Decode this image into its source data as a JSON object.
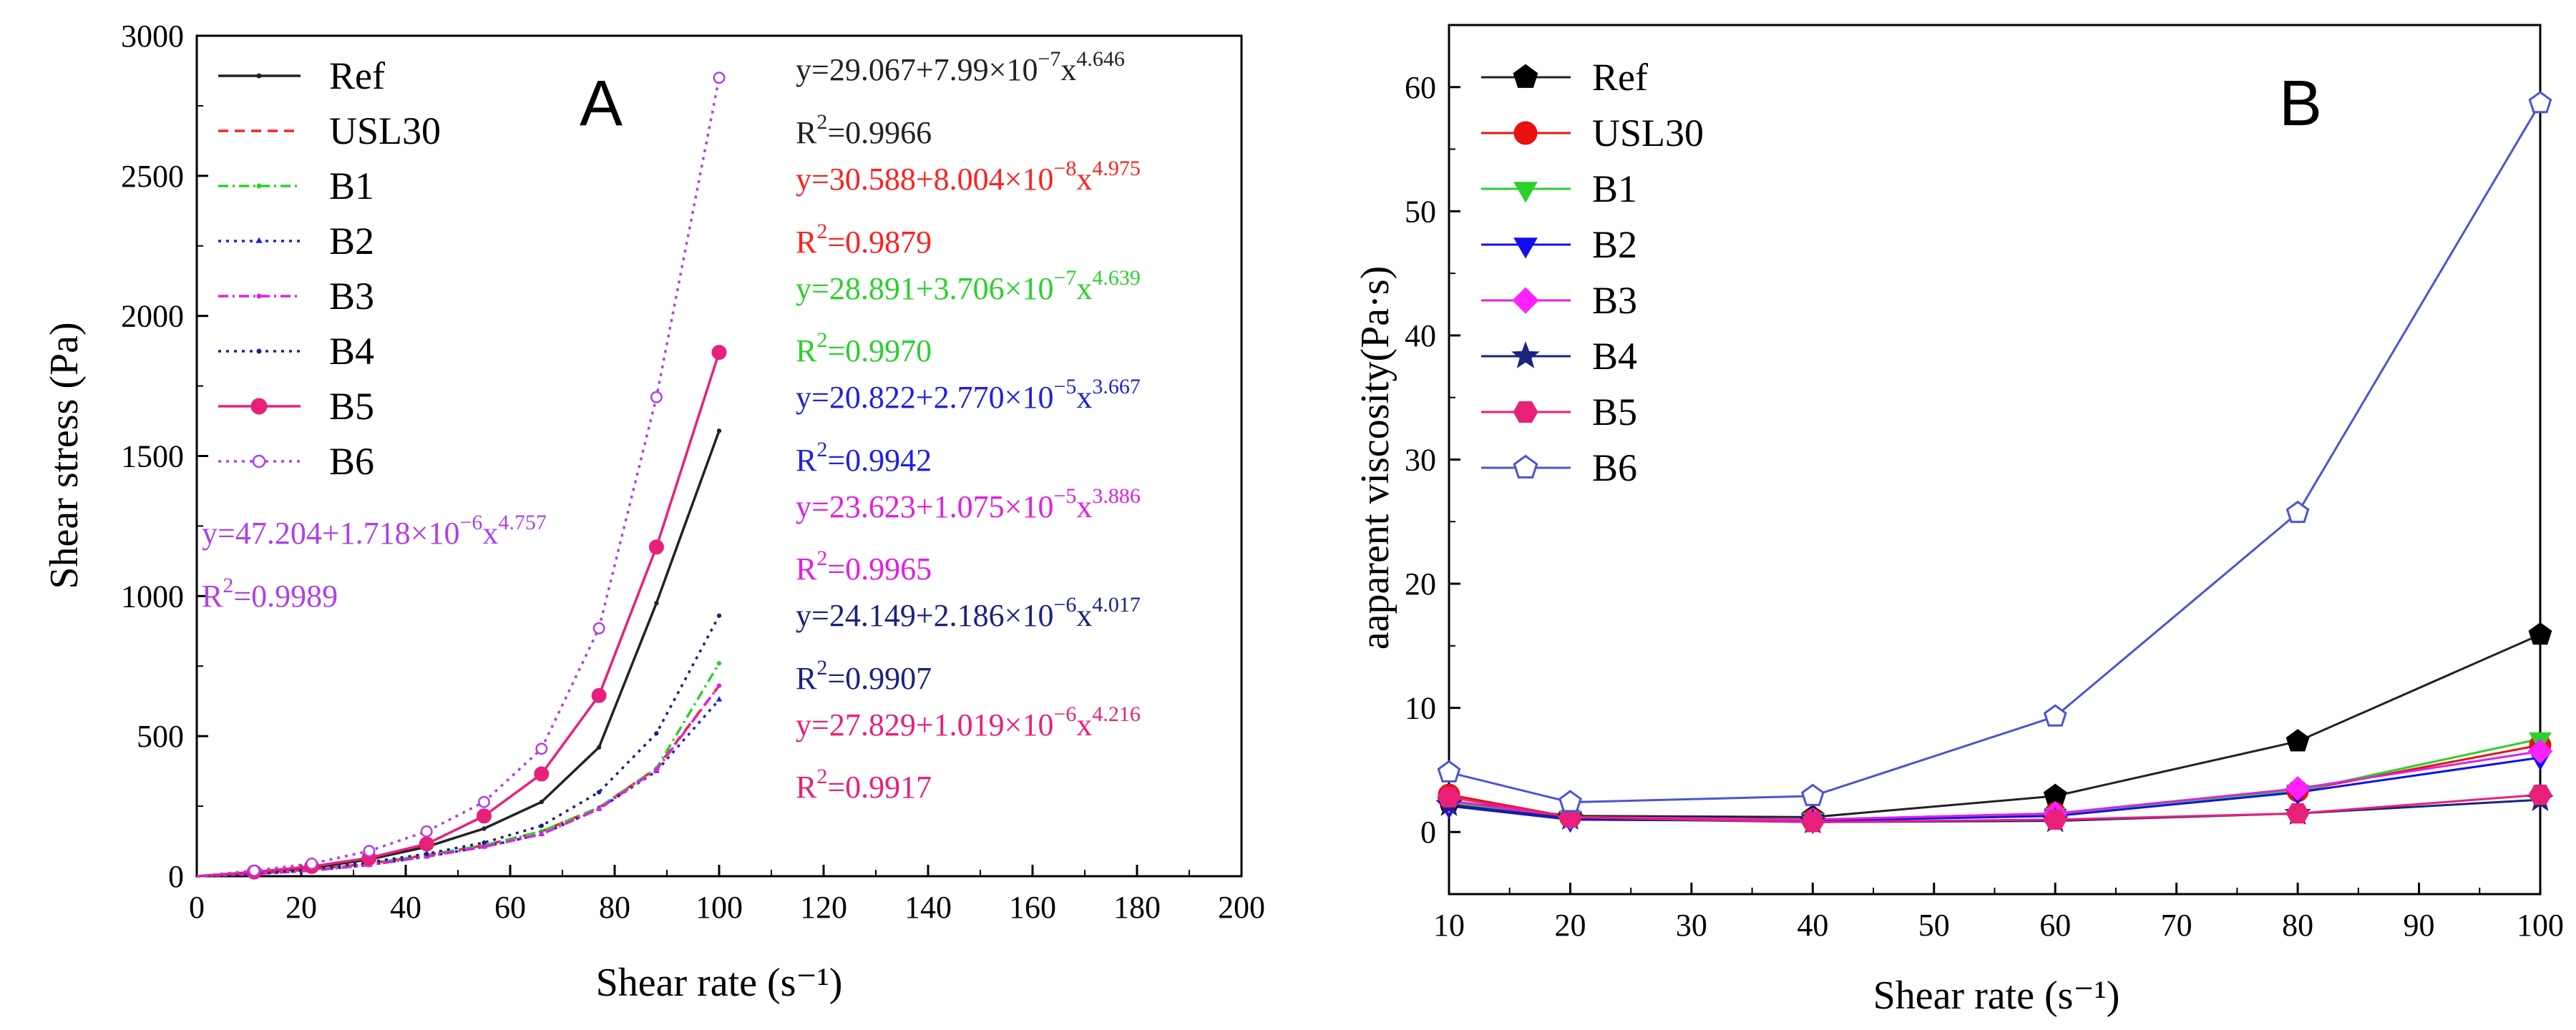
{
  "chart_data": [
    {
      "type": "line",
      "panel_label": "A",
      "xlabel": "Shear rate (s⁻¹)",
      "ylabel": "Shear stress (Pa)",
      "xlim": [
        0,
        200
      ],
      "ylim": [
        0,
        3000
      ],
      "xticks": [
        "0",
        "20",
        "40",
        "60",
        "80",
        "100",
        "120",
        "140",
        "160",
        "180",
        "200"
      ],
      "yticks": [
        "0",
        "500",
        "1000",
        "1500",
        "2000",
        "2500",
        "3000"
      ],
      "legend": "top-left",
      "x": [
        0,
        11,
        22,
        33,
        44,
        55,
        66,
        77,
        88,
        100
      ],
      "series": [
        {
          "name": "Ref",
          "color": "#222222",
          "dash": "solid",
          "marker": "dot",
          "values": [
            0,
            10,
            30,
            60,
            105,
            170,
            265,
            460,
            975,
            1590
          ]
        },
        {
          "name": "USL30",
          "color": "#ff2020",
          "dash": "dashed",
          "marker": "none",
          "values": [
            0,
            8,
            25,
            45,
            75,
            110,
            160,
            245,
            385,
            680
          ]
        },
        {
          "name": "B1",
          "color": "#2ad12a",
          "dash": "dashdot",
          "marker": "dot",
          "values": [
            0,
            8,
            22,
            45,
            75,
            110,
            160,
            245,
            385,
            760
          ]
        },
        {
          "name": "B2",
          "color": "#2020e0",
          "dash": "dotted",
          "marker": "triangle",
          "values": [
            0,
            8,
            20,
            40,
            70,
            105,
            150,
            240,
            375,
            630
          ]
        },
        {
          "name": "B3",
          "color": "#e020e0",
          "dash": "dashdot",
          "marker": "dot",
          "values": [
            0,
            8,
            20,
            40,
            70,
            105,
            150,
            240,
            380,
            680
          ]
        },
        {
          "name": "B4",
          "color": "#1a237e",
          "dash": "dotted",
          "marker": "dot",
          "values": [
            0,
            10,
            25,
            50,
            80,
            120,
            180,
            300,
            510,
            930
          ]
        },
        {
          "name": "B5",
          "color": "#e8207a",
          "dash": "solid",
          "marker": "filled-circle",
          "values": [
            0,
            15,
            35,
            65,
            115,
            215,
            365,
            645,
            1175,
            1870
          ]
        },
        {
          "name": "B6",
          "color": "#b040e8",
          "dash": "dotted",
          "marker": "open-circle",
          "values": [
            0,
            20,
            45,
            90,
            160,
            265,
            455,
            885,
            1710,
            2850
          ]
        }
      ],
      "annotations": [
        {
          "id": "ref_eq",
          "color": "#222222",
          "base": "y=29.067+7.99×10",
          "exp1": "−7",
          "mid": "x",
          "exp2": "4.646"
        },
        {
          "id": "ref_r2",
          "color": "#222222",
          "r2": "=0.9966"
        },
        {
          "id": "usl_eq",
          "color": "#ff2020",
          "base": "y=30.588+8.004×10",
          "exp1": "−8",
          "mid": "x",
          "exp2": "4.975"
        },
        {
          "id": "usl_r2",
          "color": "#ff2020",
          "r2": "=0.9879"
        },
        {
          "id": "b1_eq",
          "color": "#2ad12a",
          "base": "y=28.891+3.706×10",
          "exp1": "−7",
          "mid": "x",
          "exp2": "4.639"
        },
        {
          "id": "b1_r2",
          "color": "#2ad12a",
          "r2": "=0.9970"
        },
        {
          "id": "b2_eq",
          "color": "#2020e0",
          "base": "y=20.822+2.770×10",
          "exp1": "−5",
          "mid": "x",
          "exp2": "3.667"
        },
        {
          "id": "b2_r2",
          "color": "#2020e0",
          "r2": "=0.9942"
        },
        {
          "id": "b3_eq",
          "color": "#e020e0",
          "base": "y=23.623+1.075×10",
          "exp1": "−5",
          "mid": "x",
          "exp2": "3.886"
        },
        {
          "id": "b3_r2",
          "color": "#e020e0",
          "r2": "=0.9965"
        },
        {
          "id": "b4_eq",
          "color": "#1a237e",
          "base": "y=24.149+2.186×10",
          "exp1": "−6",
          "mid": "x",
          "exp2": "4.017"
        },
        {
          "id": "b4_r2",
          "color": "#1a237e",
          "r2": "=0.9907"
        },
        {
          "id": "b5_eq",
          "color": "#e8207a",
          "base": "y=27.829+1.019×10",
          "exp1": "−6",
          "mid": "x",
          "exp2": "4.216"
        },
        {
          "id": "b5_r2",
          "color": "#e8207a",
          "r2": "=0.9917"
        },
        {
          "id": "b6_eq",
          "color": "#b040e8",
          "base": "y=47.204+1.718×10",
          "exp1": "−6",
          "mid": "x",
          "exp2": "4.757"
        },
        {
          "id": "b6_r2",
          "color": "#b040e8",
          "r2": "=0.9989"
        }
      ]
    },
    {
      "type": "line",
      "panel_label": "B",
      "xlabel": "Shear rate (s⁻¹)",
      "ylabel": "aaparent viscosity(Pa·s)",
      "xlim": [
        10,
        100
      ],
      "ylim": [
        -5,
        65
      ],
      "xticks": [
        "10",
        "20",
        "30",
        "40",
        "50",
        "60",
        "70",
        "80",
        "90",
        "100"
      ],
      "yticks": [
        "0",
        "10",
        "20",
        "30",
        "40",
        "50",
        "60"
      ],
      "legend": "top-left",
      "x": [
        10,
        20,
        40,
        60,
        80,
        100
      ],
      "series": [
        {
          "name": "Ref",
          "color": "#000000",
          "line": "#222222",
          "marker": "pentagon",
          "filled": true,
          "values": [
            2.5,
            1.3,
            1.2,
            2.9,
            7.3,
            15.9
          ]
        },
        {
          "name": "USL30",
          "color": "#e81010",
          "line": "#e81010",
          "marker": "circle",
          "filled": true,
          "values": [
            3.0,
            1.2,
            1.0,
            1.5,
            3.3,
            7.0
          ]
        },
        {
          "name": "B1",
          "color": "#2ad12a",
          "line": "#2ad12a",
          "marker": "triangle-down",
          "filled": true,
          "values": [
            2.3,
            1.2,
            1.0,
            1.4,
            3.3,
            7.5
          ]
        },
        {
          "name": "B2",
          "color": "#1010ee",
          "line": "#1010ee",
          "marker": "triangle-down",
          "filled": true,
          "values": [
            2.1,
            1.0,
            0.9,
            1.3,
            3.2,
            6.0
          ]
        },
        {
          "name": "B3",
          "color": "#ff20ff",
          "line": "#e020e0",
          "marker": "diamond",
          "filled": true,
          "values": [
            2.5,
            1.2,
            1.0,
            1.5,
            3.5,
            6.5
          ]
        },
        {
          "name": "B4",
          "color": "#1a237e",
          "line": "#1a237e",
          "marker": "star",
          "filled": true,
          "values": [
            2.2,
            1.1,
            0.8,
            0.9,
            1.5,
            2.6
          ]
        },
        {
          "name": "B5",
          "color": "#e8207a",
          "line": "#e8207a",
          "marker": "hexagon",
          "filled": true,
          "values": [
            2.8,
            1.2,
            0.8,
            1.0,
            1.5,
            3.0
          ]
        },
        {
          "name": "B6",
          "color": "#4a55d0",
          "line": "#4a55d0",
          "marker": "pentagon",
          "filled": false,
          "values": [
            4.8,
            2.4,
            2.9,
            9.3,
            25.7,
            58.7
          ]
        }
      ]
    }
  ]
}
